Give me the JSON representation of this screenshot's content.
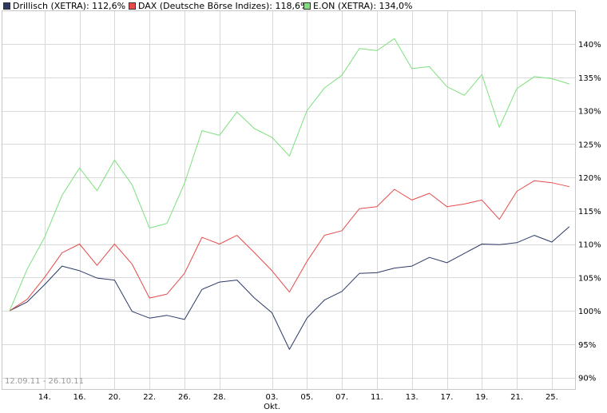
{
  "chart_data": {
    "type": "line",
    "title": "",
    "xlabel": "",
    "ylabel": "",
    "date_range_label": "12.09.11 - 26.10.11",
    "ylim": [
      90,
      143
    ],
    "y_ticks": [
      90,
      95,
      100,
      105,
      110,
      115,
      120,
      125,
      130,
      135,
      140
    ],
    "y_tick_labels": [
      "90%",
      "95%",
      "100%",
      "105%",
      "110%",
      "115%",
      "120%",
      "125%",
      "130%",
      "135%",
      "140%"
    ],
    "x": [
      "12.09.11",
      "13.09.11",
      "14.09.11",
      "15.09.11",
      "16.09.11",
      "19.09.11",
      "20.09.11",
      "21.09.11",
      "22.09.11",
      "23.09.11",
      "26.09.11",
      "27.09.11",
      "28.09.11",
      "29.09.11",
      "30.09.11",
      "03.10.11",
      "04.10.11",
      "05.10.11",
      "06.10.11",
      "07.10.11",
      "10.10.11",
      "11.10.11",
      "12.10.11",
      "13.10.11",
      "14.10.11",
      "17.10.11",
      "18.10.11",
      "19.10.11",
      "20.10.11",
      "21.10.11",
      "24.10.11",
      "25.10.11",
      "26.10.11"
    ],
    "x_tick_labels": [
      {
        "date": "14.09.11",
        "label": "14."
      },
      {
        "date": "16.09.11",
        "label": "16."
      },
      {
        "date": "20.09.11",
        "label": "20."
      },
      {
        "date": "22.09.11",
        "label": "22."
      },
      {
        "date": "26.09.11",
        "label": "26."
      },
      {
        "date": "28.09.11",
        "label": "28."
      },
      {
        "date": "03.10.11",
        "label": "03.",
        "sublabel": "Okt."
      },
      {
        "date": "05.10.11",
        "label": "05."
      },
      {
        "date": "07.10.11",
        "label": "07."
      },
      {
        "date": "11.10.11",
        "label": "11."
      },
      {
        "date": "13.10.11",
        "label": "13."
      },
      {
        "date": "17.10.11",
        "label": "17."
      },
      {
        "date": "19.10.11",
        "label": "19."
      },
      {
        "date": "21.10.11",
        "label": "21."
      },
      {
        "date": "25.10.11",
        "label": "25."
      }
    ],
    "grid": true,
    "legend_position": "top-left",
    "series": [
      {
        "name": "Drillisch (XETRA)",
        "legend_value": "112,6%",
        "color": "#2b3a67",
        "values": [
          100,
          101.3,
          103.9,
          106.7,
          106.0,
          104.9,
          104.6,
          99.9,
          98.9,
          99.3,
          98.7,
          103.2,
          104.3,
          104.6,
          101.9,
          99.7,
          94.2,
          98.9,
          101.6,
          102.9,
          105.6,
          105.7,
          106.4,
          106.7,
          108.0,
          107.2,
          108.6,
          110.0,
          109.9,
          110.2,
          111.3,
          110.3,
          112.6
        ]
      },
      {
        "name": "DAX (Deutsche Börse Indizes)",
        "legend_value": "118,6%",
        "color": "#e64b4b",
        "values": [
          100,
          101.7,
          105.0,
          108.7,
          110.0,
          106.8,
          110.0,
          107.0,
          101.9,
          102.5,
          105.6,
          111.0,
          110.0,
          111.3,
          108.7,
          106.0,
          102.8,
          107.4,
          111.3,
          112.0,
          115.3,
          115.6,
          118.2,
          116.6,
          117.6,
          115.6,
          116.0,
          116.6,
          113.7,
          117.9,
          119.5,
          119.2,
          118.6
        ]
      },
      {
        "name": "E.ON (XETRA)",
        "legend_value": "134,0%",
        "color": "#7de07d",
        "values": [
          100,
          106.2,
          111.0,
          117.3,
          121.4,
          118.0,
          122.6,
          118.9,
          112.4,
          113.1,
          119.1,
          127.0,
          126.3,
          129.8,
          127.3,
          126.0,
          123.2,
          130.0,
          133.4,
          135.3,
          139.3,
          139.0,
          140.8,
          136.3,
          136.6,
          133.6,
          132.3,
          135.4,
          127.5,
          133.3,
          135.1,
          134.8,
          134.0
        ]
      }
    ]
  }
}
